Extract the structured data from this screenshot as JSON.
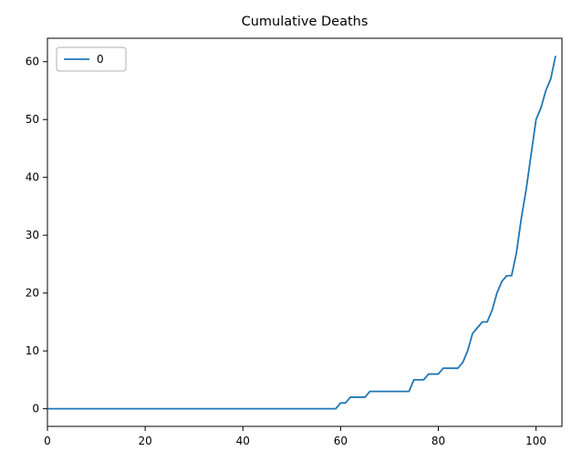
{
  "chart_data": {
    "type": "line",
    "title": "Cumulative Deaths",
    "xlabel": "",
    "ylabel": "",
    "xlim": [
      0,
      105.3
    ],
    "ylim": [
      -3.05,
      64.05
    ],
    "xticks": [
      0,
      20,
      40,
      60,
      80,
      100
    ],
    "yticks": [
      0,
      10,
      20,
      30,
      40,
      50,
      60
    ],
    "grid": false,
    "legend_position": "upper left",
    "line_color": "#1f77b4",
    "series": [
      {
        "name": "0",
        "x": [
          0,
          1,
          2,
          3,
          4,
          5,
          6,
          7,
          8,
          9,
          10,
          11,
          12,
          13,
          14,
          15,
          16,
          17,
          18,
          19,
          20,
          21,
          22,
          23,
          24,
          25,
          26,
          27,
          28,
          29,
          30,
          31,
          32,
          33,
          34,
          35,
          36,
          37,
          38,
          39,
          40,
          41,
          42,
          43,
          44,
          45,
          46,
          47,
          48,
          49,
          50,
          51,
          52,
          53,
          54,
          55,
          56,
          57,
          58,
          59,
          60,
          61,
          62,
          63,
          64,
          65,
          66,
          67,
          68,
          69,
          70,
          71,
          72,
          73,
          74,
          75,
          76,
          77,
          78,
          79,
          80,
          81,
          82,
          83,
          84,
          85,
          86,
          87,
          88,
          89,
          90,
          91,
          92,
          93,
          94,
          95,
          96,
          97,
          98,
          99,
          100,
          101,
          102,
          103,
          104
        ],
        "values": [
          0,
          0,
          0,
          0,
          0,
          0,
          0,
          0,
          0,
          0,
          0,
          0,
          0,
          0,
          0,
          0,
          0,
          0,
          0,
          0,
          0,
          0,
          0,
          0,
          0,
          0,
          0,
          0,
          0,
          0,
          0,
          0,
          0,
          0,
          0,
          0,
          0,
          0,
          0,
          0,
          0,
          0,
          0,
          0,
          0,
          0,
          0,
          0,
          0,
          0,
          0,
          0,
          0,
          0,
          0,
          0,
          0,
          0,
          0,
          0,
          1,
          1,
          2,
          2,
          2,
          2,
          3,
          3,
          3,
          3,
          3,
          3,
          3,
          3,
          3,
          5,
          5,
          5,
          6,
          6,
          6,
          7,
          7,
          7,
          7,
          8,
          10,
          13,
          14,
          15,
          15,
          17,
          20,
          22,
          23,
          23,
          27,
          33,
          38,
          44,
          50,
          52,
          55,
          57,
          61
        ]
      }
    ]
  }
}
